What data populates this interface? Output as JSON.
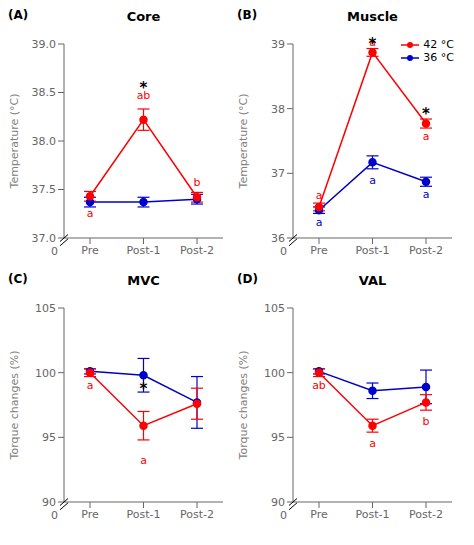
{
  "chart_data": [
    {
      "type": "line",
      "panel_label": "(A)",
      "title": "Core",
      "ylabel": "Temperature (°C)",
      "categories": [
        "Pre",
        "Post-1",
        "Post-2"
      ],
      "series": [
        {
          "name": "42 °C",
          "color": "#FF0000",
          "marker": "circle",
          "values": [
            37.43,
            38.22,
            37.42
          ],
          "error": [
            0.05,
            0.11,
            0.05
          ]
        },
        {
          "name": "36 °C",
          "color": "#0000CD",
          "marker": "circle",
          "values": [
            37.37,
            37.37,
            37.4
          ],
          "error": [
            0.05,
            0.05,
            0.05
          ]
        }
      ],
      "ylim": [
        37.0,
        39.0
      ],
      "yticks": [
        {
          "value": 37.0,
          "label": "37.0"
        },
        {
          "value": 37.5,
          "label": "37.5"
        },
        {
          "value": 38.0,
          "label": "38.0"
        },
        {
          "value": 38.5,
          "label": "38.5"
        },
        {
          "value": 39.0,
          "label": "39.0"
        }
      ],
      "grid": false,
      "axis_break_label": "0",
      "annotations": [
        {
          "text": "a",
          "category": "Pre",
          "y": 37.25,
          "color": "#FF0000"
        },
        {
          "text": "ab",
          "category": "Post-1",
          "y": 38.47,
          "color": "#FF0000"
        },
        {
          "text": "b",
          "category": "Post-2",
          "y": 37.57,
          "color": "#FF0000"
        }
      ],
      "stars": [
        {
          "text": "*",
          "category": "Post-1",
          "y": 38.58,
          "color": "#000000"
        }
      ]
    },
    {
      "type": "line",
      "panel_label": "(B)",
      "title": "Muscle",
      "ylabel": "Temperature (°C)",
      "categories": [
        "Pre",
        "Post-1",
        "Post-2"
      ],
      "series": [
        {
          "name": "42 °C",
          "color": "#FF0000",
          "marker": "circle",
          "values": [
            36.48,
            38.87,
            37.77
          ],
          "error": [
            0.06,
            0.06,
            0.07
          ]
        },
        {
          "name": "36 °C",
          "color": "#0000CD",
          "marker": "circle",
          "values": [
            36.43,
            37.17,
            36.87
          ],
          "error": [
            0.05,
            0.1,
            0.07
          ]
        }
      ],
      "ylim": [
        36,
        39
      ],
      "yticks": [
        36,
        37,
        38,
        39
      ],
      "grid": false,
      "axis_break_label": "0",
      "legend": "upper right",
      "annotations": [
        {
          "text": "a",
          "category": "Pre",
          "y": 36.66,
          "color": "#FF0000"
        },
        {
          "text": "a",
          "category": "Post-1",
          "y": 39.03,
          "color": "#FF0000"
        },
        {
          "text": "a",
          "category": "Post-2",
          "y": 37.57,
          "color": "#FF0000"
        },
        {
          "text": "a",
          "category": "Pre",
          "y": 36.24,
          "color": "#0000CD"
        },
        {
          "text": "a",
          "category": "Post-1",
          "y": 36.89,
          "color": "#0000CD"
        },
        {
          "text": "a",
          "category": "Post-2",
          "y": 36.67,
          "color": "#0000CD"
        }
      ],
      "stars": [
        {
          "text": "*",
          "category": "Post-1",
          "y": 39.05,
          "color": "#000000"
        },
        {
          "text": "*",
          "category": "Post-2",
          "y": 37.96,
          "color": "#000000"
        }
      ]
    },
    {
      "type": "line",
      "panel_label": "(C)",
      "title": "MVC",
      "ylabel": "Torque changes (%)",
      "categories": [
        "Pre",
        "Post-1",
        "Post-2"
      ],
      "series": [
        {
          "name": "42 °C",
          "color": "#FF0000",
          "marker": "circle",
          "values": [
            100.0,
            95.9,
            97.6
          ],
          "error": [
            0.3,
            1.1,
            1.2
          ]
        },
        {
          "name": "36 °C",
          "color": "#0000CD",
          "marker": "circle",
          "values": [
            100.1,
            99.8,
            97.7
          ],
          "error": [
            0.2,
            1.3,
            2.0
          ]
        }
      ],
      "ylim": [
        90,
        105
      ],
      "yticks": [
        90,
        95,
        100,
        105
      ],
      "grid": false,
      "axis_break_label": "0",
      "annotations": [
        {
          "text": "a",
          "category": "Pre",
          "y": 99.0,
          "color": "#FF0000"
        },
        {
          "text": "a",
          "category": "Post-1",
          "y": 93.2,
          "color": "#FF0000"
        }
      ],
      "stars": [
        {
          "text": "*",
          "category": "Post-1",
          "y": 99.0,
          "color": "#000000"
        }
      ]
    },
    {
      "type": "line",
      "panel_label": "(D)",
      "title": "VAL",
      "ylabel": "Torque changes (%)",
      "categories": [
        "Pre",
        "Post-1",
        "Post-2"
      ],
      "series": [
        {
          "name": "42 °C",
          "color": "#FF0000",
          "marker": "circle",
          "values": [
            100.0,
            95.9,
            97.7
          ],
          "error": [
            0.3,
            0.5,
            0.6
          ]
        },
        {
          "name": "36 °C",
          "color": "#0000CD",
          "marker": "circle",
          "values": [
            100.1,
            98.6,
            98.9
          ],
          "error": [
            0.2,
            0.6,
            1.3
          ]
        }
      ],
      "ylim": [
        90,
        105
      ],
      "yticks": [
        90,
        95,
        100,
        105
      ],
      "grid": false,
      "axis_break_label": "0",
      "annotations": [
        {
          "text": "ab",
          "category": "Pre",
          "y": 99.0,
          "color": "#FF0000"
        },
        {
          "text": "a",
          "category": "Post-1",
          "y": 94.55,
          "color": "#FF0000"
        },
        {
          "text": "b",
          "category": "Post-2",
          "y": 96.2,
          "color": "#FF0000"
        }
      ],
      "stars": []
    }
  ]
}
